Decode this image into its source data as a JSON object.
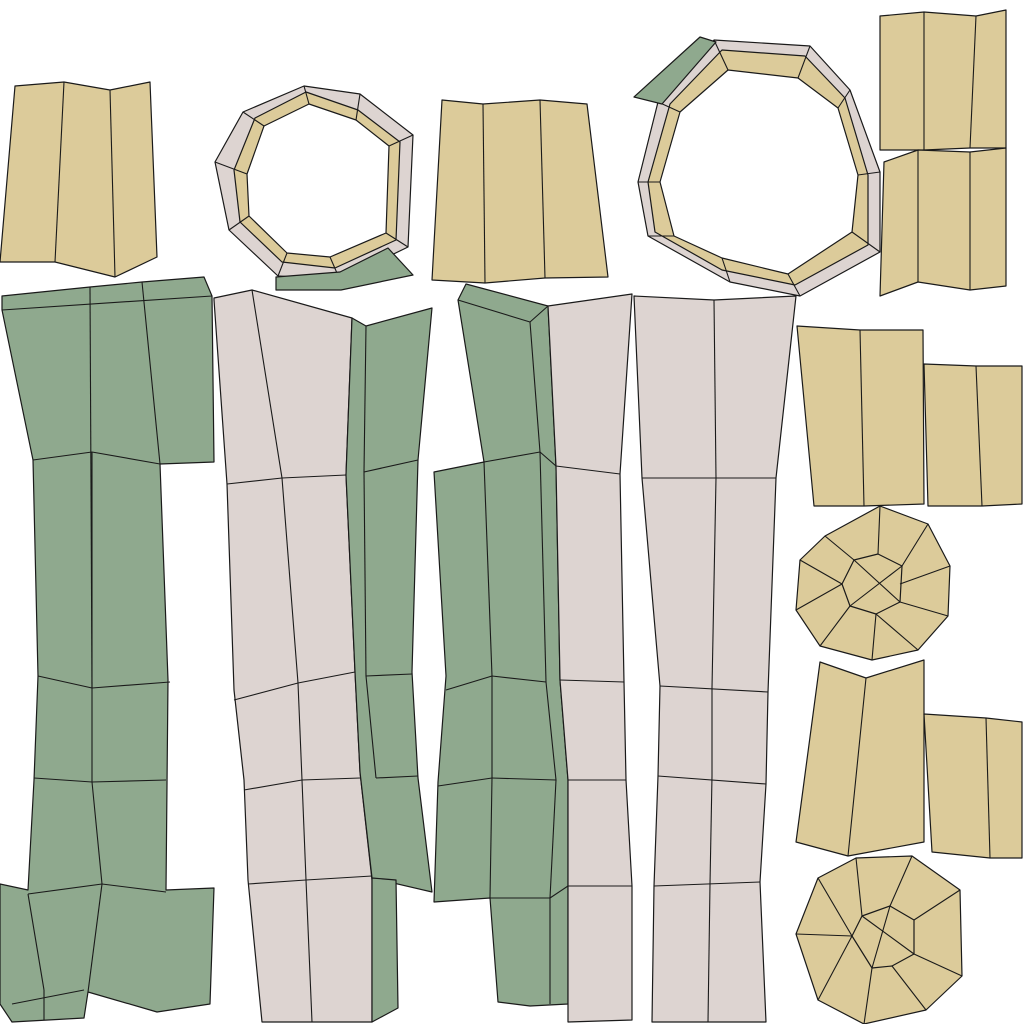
{
  "colors": {
    "background": "#ffffff",
    "tan": "#dccb9a",
    "green": "#8fa98e",
    "pink": "#ddd4d1",
    "outline": "#1a1a1a"
  },
  "islands": [
    {
      "name": "tan-panel-top-left",
      "fill": "tan"
    },
    {
      "name": "ring-small",
      "fill": "pink"
    },
    {
      "name": "tan-panel-top-middle",
      "fill": "tan"
    },
    {
      "name": "ring-large",
      "fill": "pink"
    },
    {
      "name": "tan-panels-top-right",
      "fill": "tan"
    },
    {
      "name": "green-strip-left",
      "fill": "green"
    },
    {
      "name": "pink-strip-left",
      "fill": "pink"
    },
    {
      "name": "green-strip-middle",
      "fill": "green"
    },
    {
      "name": "pink-strip-right",
      "fill": "pink"
    },
    {
      "name": "tan-panels-mid-right",
      "fill": "tan"
    },
    {
      "name": "octagon-cap-upper",
      "fill": "tan"
    },
    {
      "name": "tan-panels-lower-right",
      "fill": "tan"
    },
    {
      "name": "octagon-cap-lower",
      "fill": "tan"
    }
  ]
}
